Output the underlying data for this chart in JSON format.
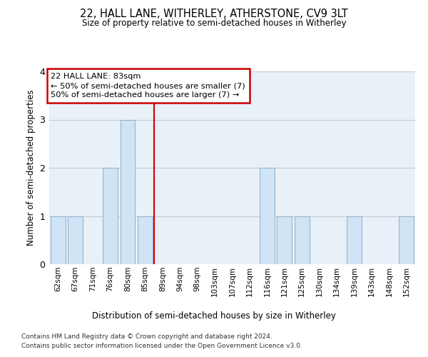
{
  "title_line1": "22, HALL LANE, WITHERLEY, ATHERSTONE, CV9 3LT",
  "title_line2": "Size of property relative to semi-detached houses in Witherley",
  "xlabel": "Distribution of semi-detached houses by size in Witherley",
  "ylabel": "Number of semi-detached properties",
  "categories": [
    "62sqm",
    "67sqm",
    "71sqm",
    "76sqm",
    "80sqm",
    "85sqm",
    "89sqm",
    "94sqm",
    "98sqm",
    "103sqm",
    "107sqm",
    "112sqm",
    "116sqm",
    "121sqm",
    "125sqm",
    "130sqm",
    "134sqm",
    "139sqm",
    "143sqm",
    "148sqm",
    "152sqm"
  ],
  "bar_heights": [
    1,
    1,
    0,
    2,
    3,
    1,
    0,
    0,
    0,
    0,
    0,
    0,
    2,
    1,
    1,
    0,
    0,
    1,
    0,
    0,
    1
  ],
  "bar_color": "#d0e4f5",
  "bar_edgecolor": "#8ab0cc",
  "red_line_x": 5.5,
  "red_line_color": "#cc0000",
  "ylim": [
    0,
    4
  ],
  "yticks": [
    0,
    1,
    2,
    3,
    4
  ],
  "annotation_text": "22 HALL LANE: 83sqm\n← 50% of semi-detached houses are smaller (7)\n50% of semi-detached houses are larger (7) →",
  "annotation_box_facecolor": "#ffffff",
  "annotation_box_edgecolor": "#cc0000",
  "grid_color": "#c0ccd8",
  "bg_color": "#e8f0f8",
  "footer_line1": "Contains HM Land Registry data © Crown copyright and database right 2024.",
  "footer_line2": "Contains public sector information licensed under the Open Government Licence v3.0."
}
